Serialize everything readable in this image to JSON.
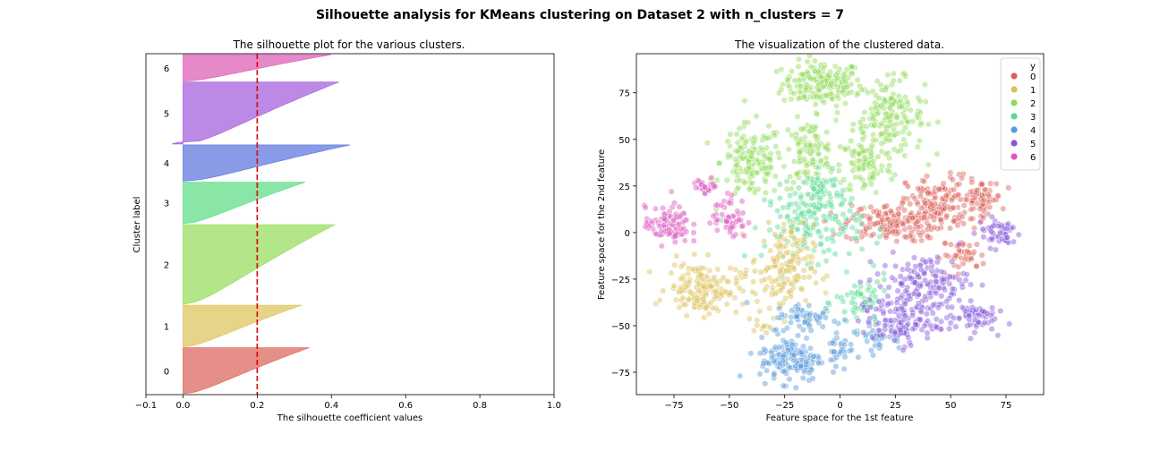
{
  "figure": {
    "suptitle": "Silhouette analysis for KMeans clustering on Dataset 2 with n_clusters = 7"
  },
  "colors": {
    "clusters": [
      "#db5f57",
      "#dbc257",
      "#91db57",
      "#57db80",
      "#57d3db",
      "#5770db",
      "#a157db",
      "#db57b2"
    ],
    "palette": [
      "#db5f57",
      "#dbc257",
      "#91db57",
      "#57db94",
      "#5799db",
      "#8657db",
      "#db57c0"
    ],
    "threshold_line": "#e00000"
  },
  "chart_data": [
    {
      "type": "area",
      "subtype": "silhouette",
      "title": "The silhouette plot for the various clusters.",
      "xlabel": "The silhouette coefficient values",
      "ylabel": "Cluster label",
      "xlim": [
        -0.1,
        1.0
      ],
      "x_ticks": [
        "−0.1",
        "0.0",
        "0.2",
        "0.4",
        "0.6",
        "0.8",
        "1.0"
      ],
      "average_silhouette": 0.2,
      "grid": false,
      "clusters": [
        {
          "label": "0",
          "size": 520,
          "max": 0.34,
          "min": 0.0
        },
        {
          "label": "1",
          "size": 470,
          "max": 0.32,
          "min": 0.0
        },
        {
          "label": "2",
          "size": 900,
          "max": 0.41,
          "min": 0.0
        },
        {
          "label": "3",
          "size": 470,
          "max": 0.33,
          "min": 0.0
        },
        {
          "label": "4",
          "size": 410,
          "max": 0.45,
          "min": 0.0
        },
        {
          "label": "5",
          "size": 700,
          "max": 0.42,
          "min": -0.03
        },
        {
          "label": "6",
          "size": 300,
          "max": 0.4,
          "min": 0.0
        }
      ]
    },
    {
      "type": "scatter",
      "title": "The visualization of the clustered data.",
      "xlabel": "Feature space for the 1st feature",
      "ylabel": "Feature space for the 2nd feature",
      "xlim": [
        -92,
        92
      ],
      "ylim": [
        -87,
        96
      ],
      "x_ticks": [
        "−75",
        "−50",
        "−25",
        "0",
        "25",
        "50",
        "75"
      ],
      "y_ticks": [
        "−75",
        "−50",
        "−25",
        "0",
        "25",
        "50",
        "75"
      ],
      "legend": {
        "title": "y",
        "position": "top-right",
        "labels": [
          "0",
          "1",
          "2",
          "3",
          "4",
          "5",
          "6"
        ]
      },
      "groups": [
        {
          "label": "2",
          "cx": -8,
          "cy": 80,
          "sx": 9,
          "sy": 6,
          "n": 170
        },
        {
          "label": "2",
          "cx": 22,
          "cy": 62,
          "sx": 8,
          "sy": 10,
          "n": 170
        },
        {
          "label": "2",
          "cx": -40,
          "cy": 38,
          "sx": 7,
          "sy": 10,
          "n": 140
        },
        {
          "label": "2",
          "cx": -14,
          "cy": 42,
          "sx": 6,
          "sy": 9,
          "n": 110
        },
        {
          "label": "2",
          "cx": 12,
          "cy": 36,
          "sx": 6,
          "sy": 8,
          "n": 80
        },
        {
          "label": "0",
          "cx": 22,
          "cy": 5,
          "sx": 10,
          "sy": 5,
          "n": 150
        },
        {
          "label": "0",
          "cx": 44,
          "cy": 15,
          "sx": 7,
          "sy": 8,
          "n": 130
        },
        {
          "label": "0",
          "cx": 63,
          "cy": 18,
          "sx": 5,
          "sy": 5,
          "n": 70
        },
        {
          "label": "0",
          "cx": 56,
          "cy": -12,
          "sx": 5,
          "sy": 4,
          "n": 40
        },
        {
          "label": "3",
          "cx": -12,
          "cy": 5,
          "sx": 11,
          "sy": 10,
          "n": 160
        },
        {
          "label": "3",
          "cx": -8,
          "cy": 24,
          "sx": 4,
          "sy": 4,
          "n": 40
        },
        {
          "label": "3",
          "cx": 10,
          "cy": -38,
          "sx": 6,
          "sy": 7,
          "n": 60
        },
        {
          "label": "1",
          "cx": -62,
          "cy": -30,
          "sx": 8,
          "sy": 7,
          "n": 150
        },
        {
          "label": "1",
          "cx": -26,
          "cy": -20,
          "sx": 7,
          "sy": 12,
          "n": 150
        },
        {
          "label": "1",
          "cx": -36,
          "cy": -50,
          "sx": 2,
          "sy": 2,
          "n": 10
        },
        {
          "label": "4",
          "cx": -22,
          "cy": -68,
          "sx": 7,
          "sy": 6,
          "n": 140
        },
        {
          "label": "4",
          "cx": -15,
          "cy": -46,
          "sx": 8,
          "sy": 4,
          "n": 60
        },
        {
          "label": "4",
          "cx": 0,
          "cy": -62,
          "sx": 3,
          "sy": 6,
          "n": 30
        },
        {
          "label": "4",
          "cx": 18,
          "cy": -55,
          "sx": 5,
          "sy": 4,
          "n": 40
        },
        {
          "label": "5",
          "cx": 38,
          "cy": -28,
          "sx": 10,
          "sy": 8,
          "n": 150
        },
        {
          "label": "5",
          "cx": 27,
          "cy": -48,
          "sx": 9,
          "sy": 6,
          "n": 110
        },
        {
          "label": "5",
          "cx": 60,
          "cy": -45,
          "sx": 5,
          "sy": 4,
          "n": 60
        },
        {
          "label": "5",
          "cx": 72,
          "cy": 0,
          "sx": 5,
          "sy": 4,
          "n": 50
        },
        {
          "label": "6",
          "cx": -78,
          "cy": 4,
          "sx": 5,
          "sy": 5,
          "n": 90
        },
        {
          "label": "6",
          "cx": -50,
          "cy": 8,
          "sx": 4,
          "sy": 6,
          "n": 50
        },
        {
          "label": "6",
          "cx": -60,
          "cy": 25,
          "sx": 3,
          "sy": 2,
          "n": 25
        }
      ]
    }
  ]
}
